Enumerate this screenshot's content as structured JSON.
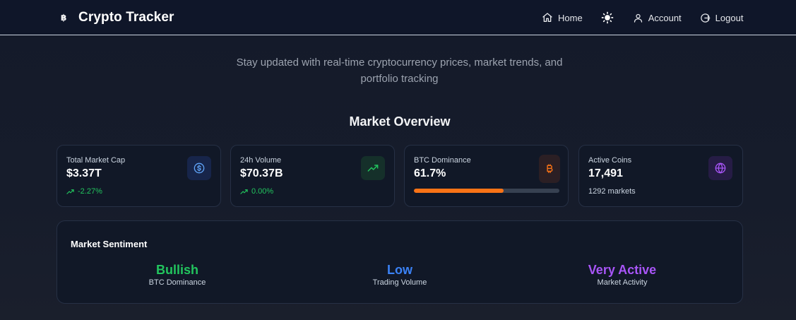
{
  "nav": {
    "brand_icon": "฿",
    "brand_title": "Crypto Tracker",
    "home_label": "Home",
    "account_label": "Account",
    "logout_label": "Logout"
  },
  "hero": {
    "tagline_line1": "Stay updated with real-time cryptocurrency prices, market trends, and",
    "tagline_line2": "portfolio tracking"
  },
  "overview": {
    "title": "Market Overview",
    "cards": [
      {
        "label": "Total Market Cap",
        "value": "$3.37T",
        "change": "-2.27%",
        "icon": "dollar-circle-icon",
        "accent": "#3b82f6"
      },
      {
        "label": "24h Volume",
        "value": "$70.37B",
        "change": "0.00%",
        "icon": "trending-up-icon",
        "accent": "#22c55e"
      },
      {
        "label": "BTC Dominance",
        "value": "61.7%",
        "progress": 0.617,
        "icon": "bitcoin-icon",
        "accent": "#f97316"
      },
      {
        "label": "Active Coins",
        "value": "17,491",
        "sub": "1292 markets",
        "icon": "globe-icon",
        "accent": "#a855f7"
      }
    ]
  },
  "sentiment": {
    "title": "Market Sentiment",
    "items": [
      {
        "value": "Bullish",
        "label": "BTC Dominance",
        "color": "#22c55e"
      },
      {
        "value": "Low",
        "label": "Trading Volume",
        "color": "#3b82f6"
      },
      {
        "value": "Very Active",
        "label": "Market Activity",
        "color": "#a855f7"
      }
    ]
  }
}
